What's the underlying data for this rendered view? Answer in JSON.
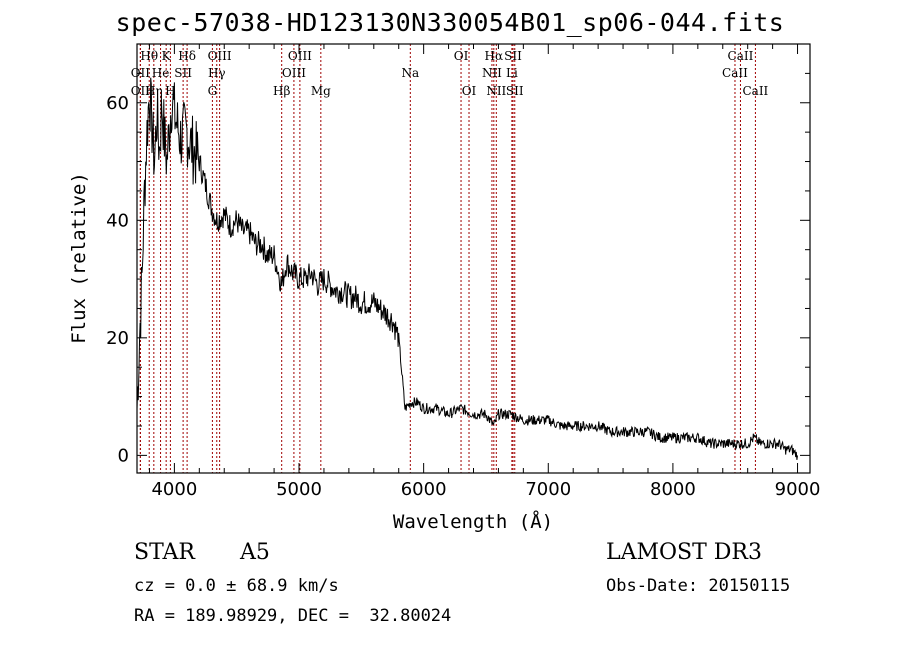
{
  "chart_data": {
    "type": "line",
    "title": "spec-57038-HD123130N330054B01_sp06-044.fits",
    "xlabel": "Wavelength (Å)",
    "ylabel": "Flux (relative)",
    "xlim": [
      3700,
      9100
    ],
    "ylim": [
      -3,
      70
    ],
    "x_ticks": [
      "4000",
      "5000",
      "6000",
      "7000",
      "8000",
      "9000"
    ],
    "y_ticks": [
      "0",
      "20",
      "40",
      "60"
    ],
    "series": [
      {
        "name": "flux",
        "x": [
          3700,
          3720,
          3740,
          3760,
          3780,
          3800,
          3820,
          3840,
          3860,
          3880,
          3900,
          3920,
          3940,
          3960,
          3980,
          4000,
          4050,
          4100,
          4150,
          4200,
          4250,
          4300,
          4340,
          4400,
          4450,
          4500,
          4550,
          4600,
          4650,
          4700,
          4750,
          4800,
          4861,
          4900,
          4950,
          5000,
          5050,
          5100,
          5150,
          5200,
          5250,
          5300,
          5350,
          5400,
          5450,
          5500,
          5550,
          5600,
          5650,
          5700,
          5750,
          5800,
          5850,
          5900,
          5950,
          6000,
          6100,
          6200,
          6300,
          6400,
          6500,
          6563,
          6600,
          6700,
          6800,
          6900,
          7000,
          7100,
          7200,
          7300,
          7400,
          7500,
          7600,
          7700,
          7800,
          7900,
          8000,
          8100,
          8200,
          8300,
          8400,
          8500,
          8600,
          8650,
          8700,
          8750,
          8800,
          8850,
          8900,
          8950,
          9000
        ],
        "y": [
          8,
          20,
          30,
          45,
          55,
          62,
          56,
          50,
          58,
          52,
          60,
          54,
          50,
          56,
          61,
          58,
          54,
          55,
          52,
          50,
          46,
          42,
          40,
          41,
          39,
          40,
          38,
          38,
          36,
          36,
          34,
          34,
          29,
          33,
          31,
          30,
          30,
          31,
          29,
          30,
          29,
          28,
          28,
          27,
          27,
          26,
          26,
          26,
          25,
          24,
          23,
          20,
          8,
          9,
          9,
          8,
          8,
          7,
          8,
          7,
          7,
          5,
          7,
          7,
          6,
          6,
          6,
          5,
          5,
          5,
          5,
          4,
          4,
          4,
          4,
          3,
          3,
          3,
          3,
          2,
          2,
          2,
          2,
          3,
          2,
          2,
          2,
          2,
          1,
          1,
          0
        ]
      }
    ],
    "lines": [
      {
        "name": "Hθ",
        "x": 3798,
        "row": 1
      },
      {
        "name": "OII",
        "x": 3727,
        "row": 2
      },
      {
        "name": "OII",
        "x": 3727,
        "row": 3
      },
      {
        "name": "K",
        "x": 3934,
        "row": 1
      },
      {
        "name": "He",
        "x": 3889,
        "row": 2
      },
      {
        "name": "Hη",
        "x": 3835,
        "row": 3
      },
      {
        "name": "SII",
        "x": 4070,
        "row": 2
      },
      {
        "name": "H",
        "x": 3968,
        "row": 3
      },
      {
        "name": "Hδ",
        "x": 4102,
        "row": 1
      },
      {
        "name": "OIII",
        "x": 4363,
        "row": 1
      },
      {
        "name": "Hγ",
        "x": 4340,
        "row": 2
      },
      {
        "name": "G",
        "x": 4305,
        "row": 3
      },
      {
        "name": "Hβ",
        "x": 4861,
        "row": 3
      },
      {
        "name": "OIII",
        "x": 5007,
        "row": 1
      },
      {
        "name": "OIII",
        "x": 4959,
        "row": 2
      },
      {
        "name": "Mg",
        "x": 5175,
        "row": 3
      },
      {
        "name": "Na",
        "x": 5893,
        "row": 2
      },
      {
        "name": "OI",
        "x": 6300,
        "row": 1
      },
      {
        "name": "OI",
        "x": 6364,
        "row": 3
      },
      {
        "name": "Hα",
        "x": 6563,
        "row": 1
      },
      {
        "name": "NII",
        "x": 6548,
        "row": 2
      },
      {
        "name": "NII",
        "x": 6583,
        "row": 3
      },
      {
        "name": "SII",
        "x": 6717,
        "row": 1
      },
      {
        "name": "Li",
        "x": 6708,
        "row": 2
      },
      {
        "name": "SII",
        "x": 6731,
        "row": 3
      },
      {
        "name": "CaII",
        "x": 8542,
        "row": 1
      },
      {
        "name": "CaII",
        "x": 8498,
        "row": 2
      },
      {
        "name": "CaII",
        "x": 8662,
        "row": 3
      }
    ]
  },
  "info": {
    "class": "STAR",
    "subclass": "A5",
    "survey": "LAMOST DR3",
    "cz": "cz = 0.0 ± 68.9 km/s",
    "obs_date": "Obs-Date: 20150115",
    "radec": "RA = 189.98929, DEC =  32.80024"
  }
}
